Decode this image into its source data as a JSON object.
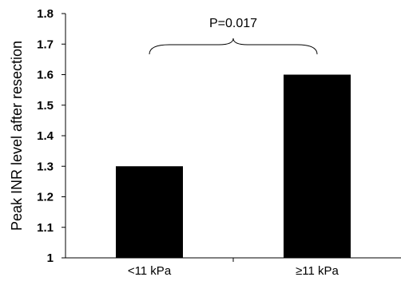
{
  "chart_data": {
    "type": "bar",
    "categories": [
      "<11 kPa",
      "≥11 kPa"
    ],
    "values": [
      1.3,
      1.6
    ],
    "ylabel": "Peak INR level after resection",
    "ylim": [
      1,
      1.8
    ],
    "yticks": [
      1,
      1.1,
      1.2,
      1.3,
      1.4,
      1.5,
      1.6,
      1.7,
      1.8
    ],
    "ytick_labels": [
      "1",
      "1.1",
      "1.2",
      "1.3",
      "1.4",
      "1.5",
      "1.6",
      "1.7",
      "1.8"
    ],
    "grid": false,
    "bar_color": "#000000",
    "annotation": {
      "text": "P=0.017",
      "type": "bracket",
      "spans": [
        "<11 kPa",
        "≥11 kPa"
      ]
    }
  }
}
